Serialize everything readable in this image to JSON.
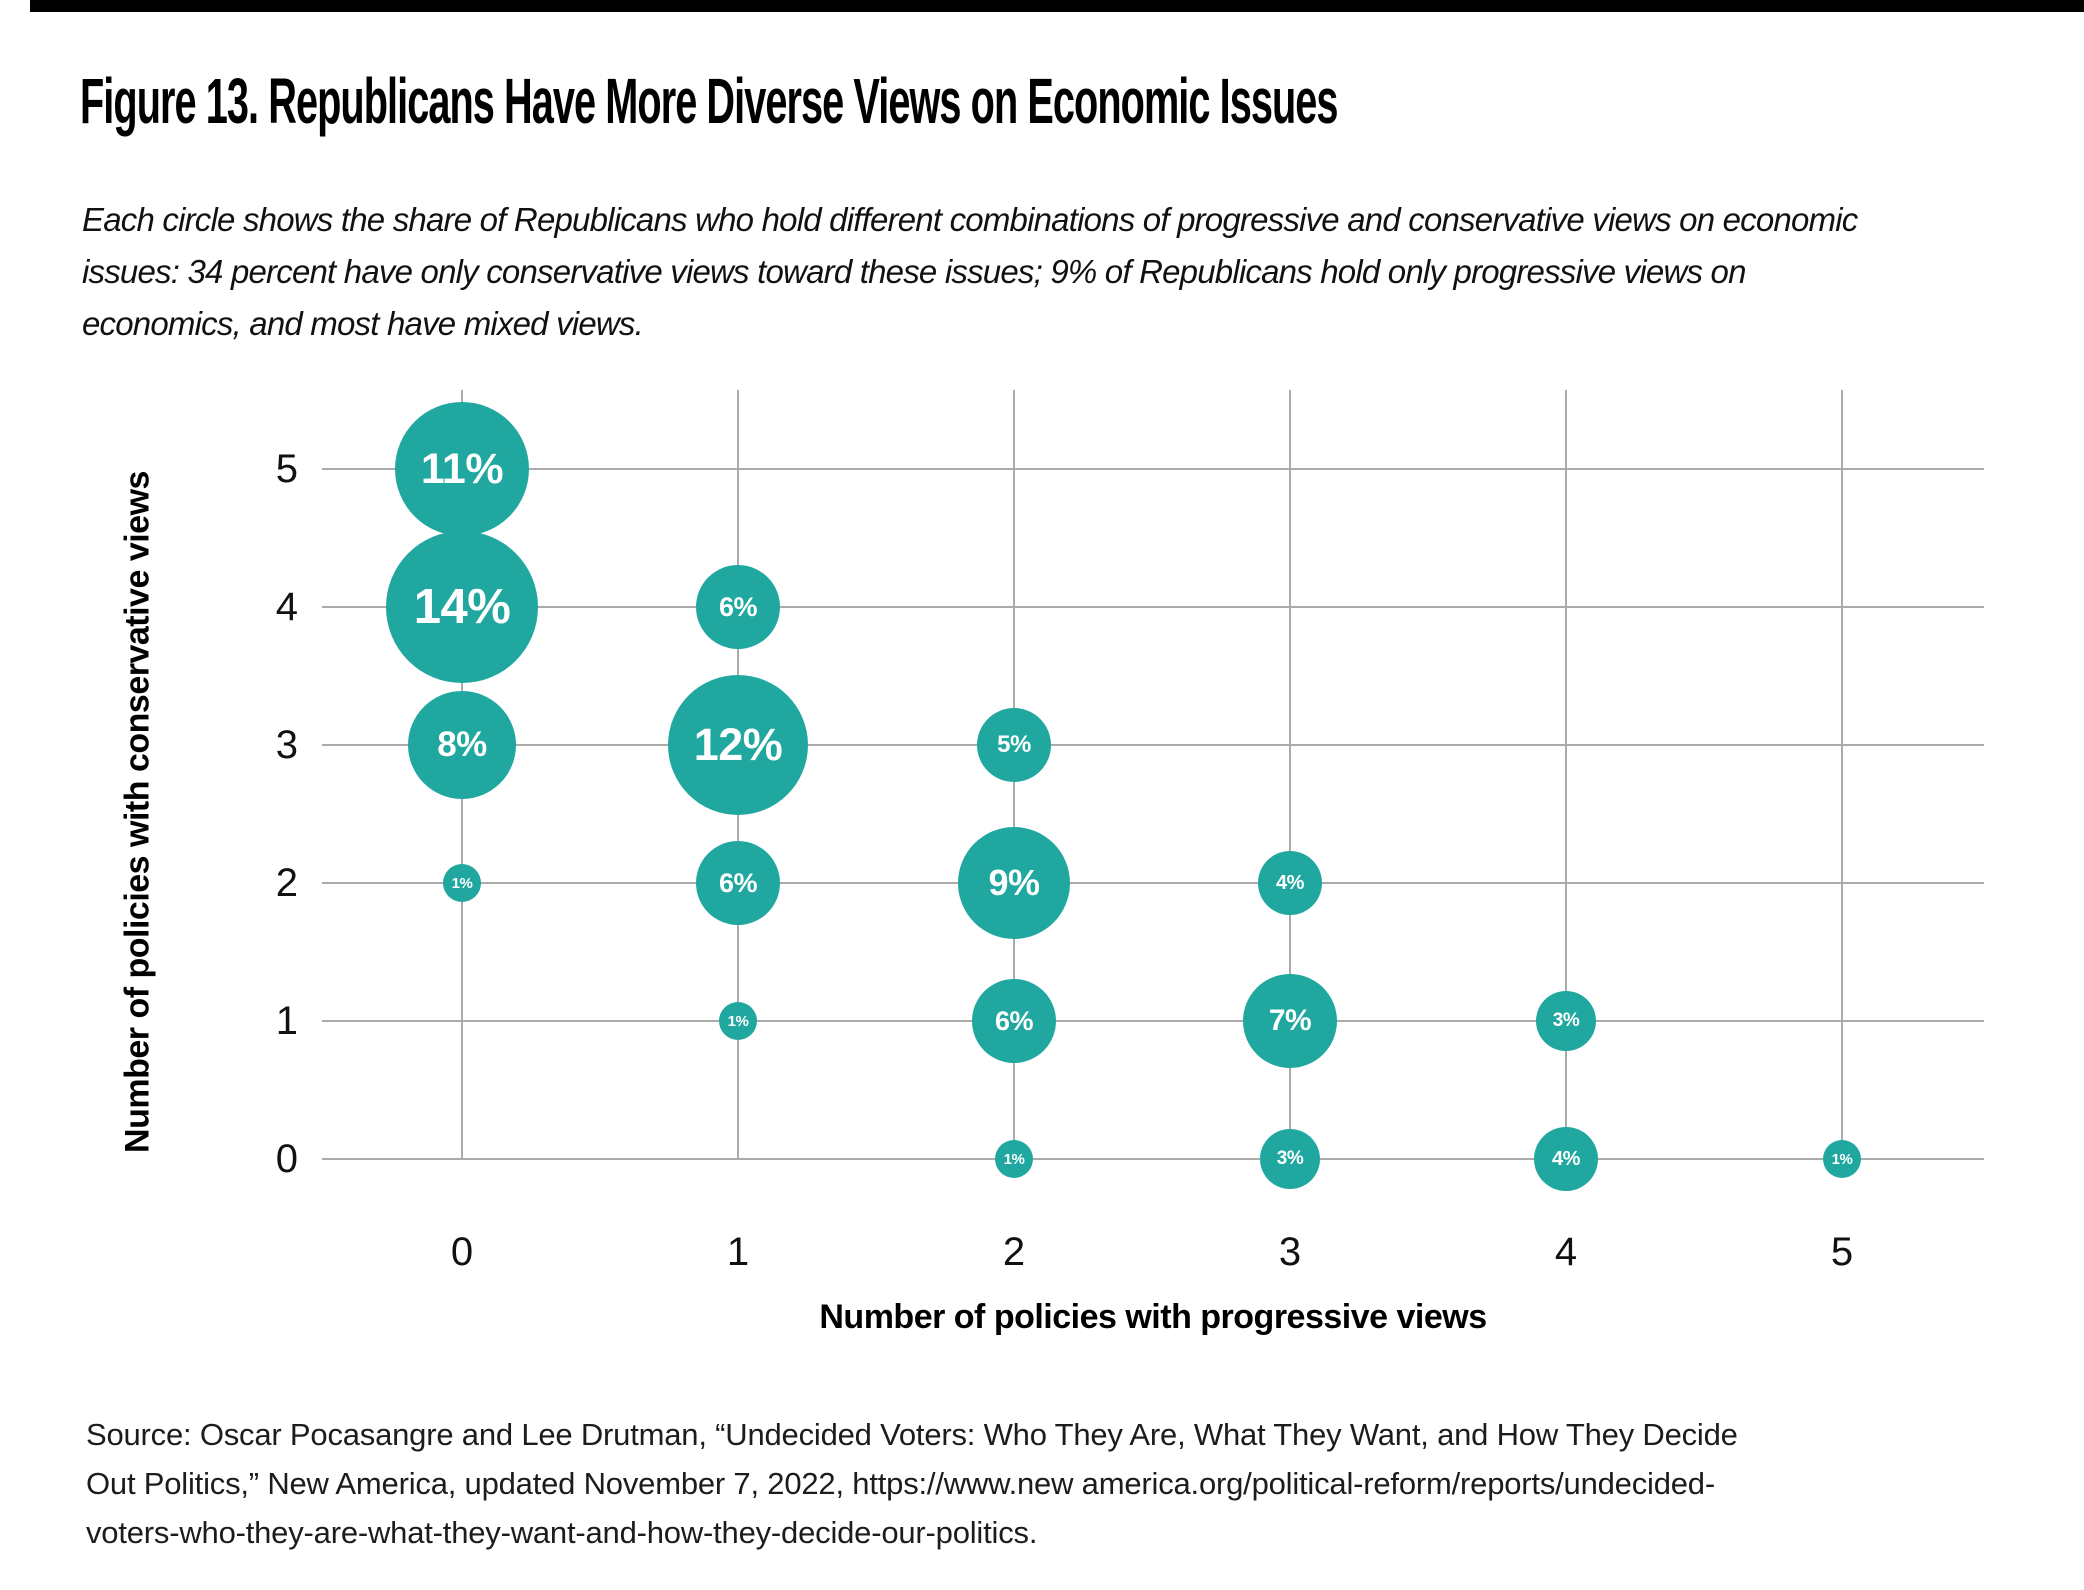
{
  "title": "Figure 13. Republicans Have More Diverse Views on Economic Issues",
  "subtitle_lines": [
    "Each circle shows the share of Republicans who hold different combinations of progressive and conservative views on economic",
    "issues: 34 percent have only conservative views toward these issues; 9% of Republicans hold only progressive views on",
    "economics, and most have mixed views."
  ],
  "chart_data": {
    "type": "scatter",
    "subtype": "bubble",
    "title": "Figure 13. Republicans Have More Diverse Views on Economic Issues",
    "x_axis": {
      "label": "Number of policies with progressive views",
      "ticks": [
        "0",
        "1",
        "2",
        "3",
        "4",
        "5"
      ],
      "range": [
        0,
        5
      ]
    },
    "y_axis": {
      "label": "Number of policies with conservative views",
      "ticks": [
        "0",
        "1",
        "2",
        "3",
        "4",
        "5"
      ],
      "range": [
        0,
        5
      ]
    },
    "grid": true,
    "legend": "none",
    "value_unit": "percent of Republicans",
    "points": [
      {
        "x": 0,
        "y": 5,
        "value": 11,
        "label": "11%",
        "r": 67
      },
      {
        "x": 0,
        "y": 4,
        "value": 14,
        "label": "14%",
        "r": 76
      },
      {
        "x": 0,
        "y": 3,
        "value": 8,
        "label": "8%",
        "r": 54
      },
      {
        "x": 0,
        "y": 2,
        "value": 1,
        "label": "1%",
        "r": 19
      },
      {
        "x": 1,
        "y": 4,
        "value": 6,
        "label": "6%",
        "r": 42
      },
      {
        "x": 1,
        "y": 3,
        "value": 12,
        "label": "12%",
        "r": 70
      },
      {
        "x": 1,
        "y": 2,
        "value": 6,
        "label": "6%",
        "r": 42
      },
      {
        "x": 1,
        "y": 1,
        "value": 1,
        "label": "1%",
        "r": 19
      },
      {
        "x": 2,
        "y": 3,
        "value": 5,
        "label": "5%",
        "r": 37
      },
      {
        "x": 2,
        "y": 2,
        "value": 9,
        "label": "9%",
        "r": 56
      },
      {
        "x": 2,
        "y": 1,
        "value": 6,
        "label": "6%",
        "r": 42
      },
      {
        "x": 2,
        "y": 0,
        "value": 1,
        "label": "1%",
        "r": 19
      },
      {
        "x": 3,
        "y": 2,
        "value": 4,
        "label": "4%",
        "r": 32
      },
      {
        "x": 3,
        "y": 1,
        "value": 7,
        "label": "7%",
        "r": 47
      },
      {
        "x": 3,
        "y": 0,
        "value": 3,
        "label": "3%",
        "r": 30
      },
      {
        "x": 4,
        "y": 1,
        "value": 3,
        "label": "3%",
        "r": 30
      },
      {
        "x": 4,
        "y": 0,
        "value": 4,
        "label": "4%",
        "r": 32
      },
      {
        "x": 5,
        "y": 0,
        "value": 1,
        "label": "1%",
        "r": 19
      }
    ],
    "colors": {
      "bubble": "#20A8A0",
      "bubble_label": "#FFFFFF",
      "gridline": "#ABABAB",
      "axis_text": "#111111",
      "top_bar": "#000000"
    }
  },
  "source_lines": [
    "Source: Oscar Pocasangre and Lee Drutman, “Undecided Voters: Who They Are, What They Want, and How They Decide",
    "Out Politics,” New America, updated November 7, 2022, https://www.new america.org/political-reform/reports/undecided-",
    "voters-who-they-are-what-they-want-and-how-they-decide-our-politics."
  ]
}
